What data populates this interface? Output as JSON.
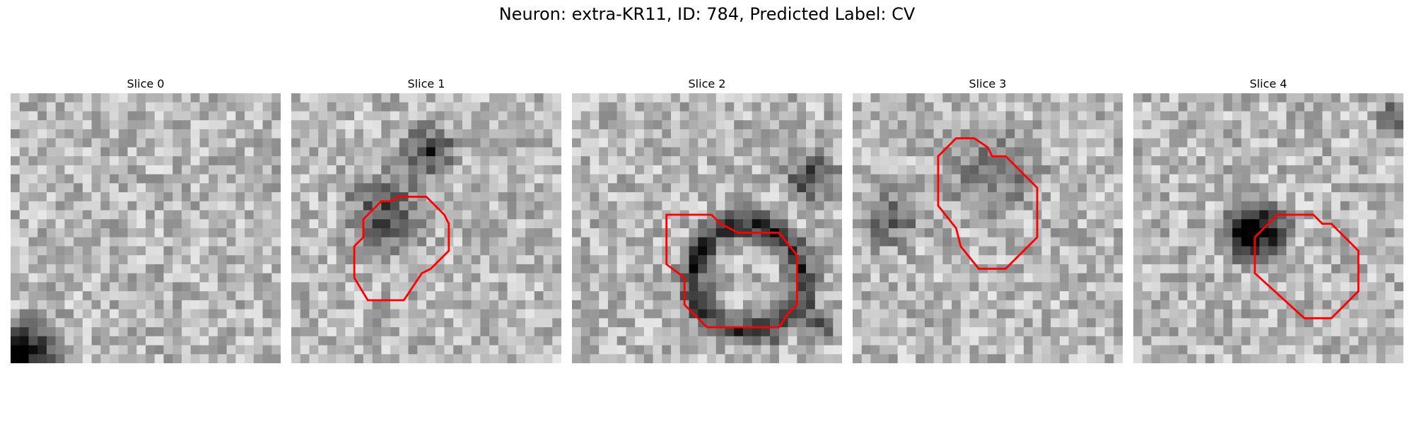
{
  "figure": {
    "title": "Neuron: extra-KR11, ID: 784, Predicted Label: CV",
    "contour_color": "#ff0000",
    "panels": [
      {
        "title": "Slice 0",
        "has_contour": false
      },
      {
        "title": "Slice 1",
        "has_contour": true
      },
      {
        "title": "Slice 2",
        "has_contour": true
      },
      {
        "title": "Slice 3",
        "has_contour": true
      },
      {
        "title": "Slice 4",
        "has_contour": true
      }
    ]
  }
}
